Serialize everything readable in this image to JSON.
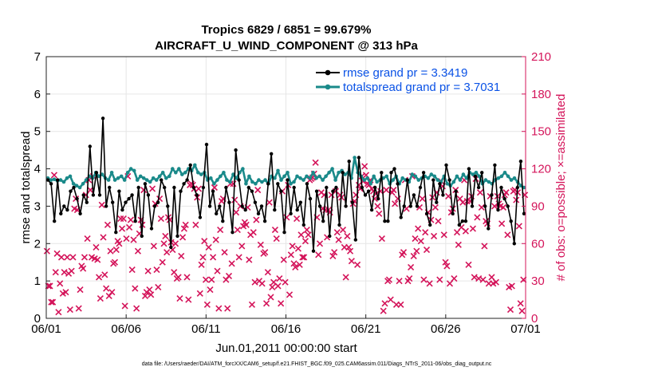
{
  "chart_data": {
    "type": "line",
    "title": "Tropics 6829 / 6851 = 99.679%",
    "subtitle": "AIRCRAFT_U_WIND_COMPONENT @ 313 hPa",
    "xlabel": "Jun.01,2011 00:00:00 start",
    "ylabel_left": "rmse and totalspread",
    "ylabel_right": "# of obs: o=possible; ×=assimilated",
    "xlim": [
      0,
      30
    ],
    "ylim_left": [
      0,
      7
    ],
    "ylim_right": [
      0,
      210
    ],
    "x_ticks": [
      {
        "x": 0,
        "label": "06/01"
      },
      {
        "x": 5,
        "label": "06/06"
      },
      {
        "x": 10,
        "label": "06/11"
      },
      {
        "x": 15,
        "label": "06/16"
      },
      {
        "x": 20,
        "label": "06/21"
      },
      {
        "x": 25,
        "label": "06/26"
      },
      {
        "x": 30,
        "label": "07/01"
      }
    ],
    "y_ticks_left": [
      "0",
      "1",
      "2",
      "3",
      "4",
      "5",
      "6",
      "7"
    ],
    "y_ticks_right": [
      "0",
      "30",
      "60",
      "90",
      "120",
      "150",
      "180",
      "210"
    ],
    "grid": true,
    "legend": {
      "position": "top-right"
    },
    "series": [
      {
        "name": "rmse grand pr = 3.3419",
        "color": "#000000",
        "marker": "dot",
        "axis": "left",
        "values": [
          3.7,
          3.6,
          2.6,
          3.7,
          2.8,
          3.0,
          2.9,
          3.4,
          3.5,
          3.2,
          2.8,
          3.3,
          3.1,
          4.6,
          3.3,
          3.9,
          3.3,
          5.35,
          3.0,
          3.5,
          3.1,
          2.3,
          3.4,
          2.9,
          3.1,
          3.2,
          3.3,
          2.6,
          3.5,
          2.2,
          3.6,
          3.3,
          2.4,
          3.0,
          3.1,
          3.7,
          3.5,
          3.0,
          1.9,
          3.5,
          2.2,
          3.4,
          3.6,
          3.7,
          4.1,
          3.5,
          3.3,
          2.7,
          3.5,
          4.65,
          3.0,
          3.4,
          2.8,
          3.0,
          2.6,
          3.5,
          3.1,
          2.3,
          4.5,
          3.7,
          3.0,
          2.9,
          3.5,
          3.4,
          3.1,
          2.8,
          3.0,
          2.6,
          3.6,
          4.4,
          2.9,
          3.6,
          3.4,
          2.3,
          3.7,
          2.8,
          3.5,
          2.9,
          3.1,
          2.5,
          3.6,
          3.2,
          1.8,
          3.4,
          3.0,
          2.6,
          3.5,
          2.2,
          3.4,
          3.5,
          2.5,
          3.9,
          3.0,
          4.2,
          3.1,
          2.1,
          4.3,
          3.5,
          3.3,
          3.4,
          2.9,
          3.5,
          3.2,
          3.9,
          2.6,
          2.6,
          3.9,
          4.0,
          3.6,
          2.7,
          3.0,
          3.7,
          3.0,
          3.3,
          3.0,
          3.5,
          3.9,
          2.8,
          2.5,
          3.7,
          3.1,
          3.6,
          3.3,
          4.1,
          3.7,
          2.8,
          3.4,
          2.5,
          2.6,
          2.6,
          4.0,
          3.0,
          3.8,
          3.5,
          3.9,
          3.0,
          2.4,
          3.3,
          4.1,
          2.9,
          3.5,
          3.2,
          3.0,
          2.6,
          2.0,
          3.5,
          4.2,
          2.8
        ]
      },
      {
        "name": "totalspread grand pr = 3.7031",
        "color": "#1a8a8a",
        "marker": "dot",
        "axis": "left",
        "values": [
          3.75,
          3.7,
          3.72,
          3.68,
          3.7,
          3.65,
          3.75,
          3.8,
          3.6,
          3.55,
          3.5,
          3.6,
          3.7,
          3.8,
          3.75,
          3.9,
          3.8,
          3.85,
          3.75,
          3.7,
          3.9,
          3.7,
          3.75,
          3.8,
          3.7,
          3.9,
          4.0,
          3.95,
          3.7,
          3.8,
          3.75,
          3.7,
          3.65,
          3.75,
          3.7,
          3.8,
          3.9,
          3.75,
          3.8,
          4.0,
          3.9,
          4.0,
          3.85,
          3.9,
          4.0,
          3.95,
          4.1,
          3.9,
          3.85,
          3.9,
          3.7,
          3.75,
          3.6,
          3.7,
          3.8,
          3.9,
          3.7,
          3.65,
          3.85,
          3.75,
          3.9,
          4.0,
          3.6,
          3.8,
          3.65,
          3.6,
          3.7,
          3.65,
          3.7,
          3.6,
          3.8,
          3.75,
          3.95,
          3.7,
          3.8,
          3.9,
          3.6,
          3.65,
          3.8,
          3.75,
          3.7,
          3.8,
          3.75,
          3.9,
          3.75,
          3.8,
          3.7,
          3.8,
          3.9,
          4.0,
          3.7,
          3.9,
          3.95,
          3.85,
          3.9,
          3.75,
          4.3,
          3.9,
          3.8,
          3.7,
          3.75,
          3.6,
          3.8,
          3.65,
          3.7,
          3.75,
          3.8,
          3.6,
          3.7,
          3.8,
          3.6,
          3.75,
          3.7,
          3.65,
          3.85,
          3.8,
          3.7,
          3.75,
          3.8,
          3.75,
          3.85,
          3.8,
          3.7,
          3.65,
          3.8,
          3.6,
          3.55,
          3.65,
          3.8,
          3.7,
          3.85,
          3.75,
          3.9,
          3.85,
          3.9,
          3.8,
          3.6,
          3.7,
          3.65,
          3.6,
          3.7,
          3.75,
          3.8,
          3.9,
          3.8,
          3.7,
          3.75,
          3.65,
          3.55,
          3.5
        ]
      },
      {
        "name": "# of obs assimilated",
        "color": "#d4145a",
        "marker": "x",
        "axis": "right",
        "values": [
          54,
          26,
          26,
          13,
          13,
          115,
          37,
          52,
          5,
          28,
          49,
          20,
          37,
          21,
          49,
          36,
          7,
          38,
          49,
          88,
          96,
          87,
          8,
          23,
          42,
          40,
          49,
          99,
          64,
          111,
          103,
          49,
          114,
          48,
          57,
          47,
          33,
          16,
          91,
          65,
          35,
          24,
          75,
          18,
          54,
          21,
          44,
          45,
          55,
          62,
          60,
          80,
          72,
          80,
          10,
          64,
          114,
          73,
          79,
          39,
          63,
          24,
          8,
          54,
          68,
          79,
          75,
          103,
          18,
          21,
          38,
          23,
          19,
          104,
          58,
          92,
          39,
          25,
          96,
          80,
          45,
          60,
          66,
          53,
          81,
          79,
          61,
          55,
          37,
          60,
          32,
          33,
          16,
          50,
          65,
          72,
          75,
          33,
          15,
          107,
          108,
          107,
          104,
          75,
          97,
          104,
          20,
          43,
          49,
          62,
          31,
          11,
          57,
          23,
          31,
          49,
          105,
          63,
          38,
          8,
          71,
          94,
          96,
          53,
          31,
          8,
          34,
          108,
          44,
          108,
          95,
          85,
          71,
          49,
          90,
          58,
          74,
          77,
          75,
          89,
          47,
          67,
          11,
          69,
          29,
          79,
          103,
          30,
          59,
          28,
          52,
          53,
          12,
          37,
          93,
          17,
          25,
          29,
          71,
          64,
          26,
          32,
          12,
          102,
          47,
          29,
          81,
          107,
          19,
          51,
          58,
          44,
          41,
          80,
          56,
          43,
          67,
          49,
          49,
          62,
          71,
          67,
          111,
          112,
          113,
          116,
          125,
          81,
          51,
          60,
          101,
          88,
          99,
          87,
          65,
          87,
          85,
          99,
          50,
          53,
          102,
          69,
          63,
          99,
          97,
          71,
          57,
          33,
          66,
          57,
          54,
          46,
          92,
          94,
          99,
          43,
          107,
          104,
          114,
          110,
          122,
          115,
          108,
          107,
          111,
          104,
          102,
          96,
          100,
          90,
          84,
          102,
          64,
          6,
          12,
          103,
          30,
          31,
          15,
          101,
          103,
          92,
          11,
          96,
          30,
          11,
          51,
          53,
          111,
          88,
          30,
          32,
          41,
          114,
          50,
          64,
          54,
          72,
          89,
          62,
          96,
          31,
          69,
          55,
          85,
          28,
          79,
          97,
          66,
          89,
          101,
          78,
          31,
          110,
          106,
          67,
          45,
          42,
          98,
          28,
          85,
          88,
          32,
          103,
          69,
          59,
          96,
          73,
          93,
          111,
          70,
          94,
          43,
          94,
          98,
          72,
          33,
          112,
          81,
          32,
          101,
          89,
          31,
          58,
          78,
          76,
          28,
          98,
          33,
          28,
          90,
          29,
          98,
          92,
          90,
          76,
          89,
          99,
          101,
          67,
          25,
          7,
          26,
          102,
          103,
          95,
          101,
          74,
          12,
          6,
          31,
          99
        ]
      }
    ]
  },
  "colors": {
    "rmse": "#000000",
    "spread": "#1a8a8a",
    "obs": "#d4145a",
    "right_axis": "#d4145a",
    "legend_text": "#0a52e6"
  },
  "footnote": "data file: /Users/raeder/DAI/ATM_forcXX/CAM6_setup/f.e21.FHIST_BGC.f09_025.CAM6assim.011/Diags_NTrS_2011-06/obs_diag_output.nc"
}
